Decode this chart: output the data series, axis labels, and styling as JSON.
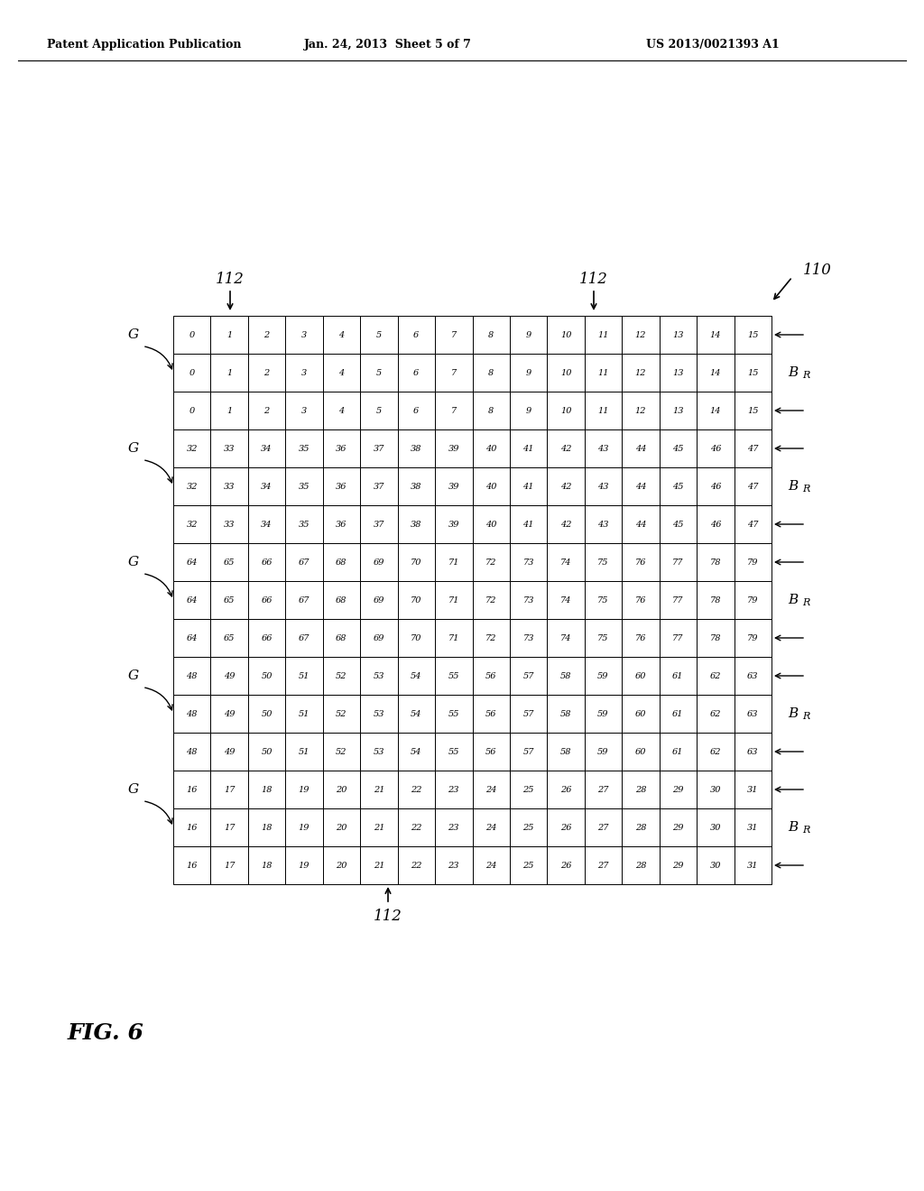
{
  "title_left": "Patent Application Publication",
  "title_mid": "Jan. 24, 2013  Sheet 5 of 7",
  "title_right": "US 2013/0021393 A1",
  "fig_label": "FIG. 6",
  "label_110": "110",
  "label_112": "112",
  "grid_rows": 15,
  "grid_cols": 16,
  "cell_data": [
    [
      0,
      1,
      2,
      3,
      4,
      5,
      6,
      7,
      8,
      9,
      10,
      11,
      12,
      13,
      14,
      15
    ],
    [
      0,
      1,
      2,
      3,
      4,
      5,
      6,
      7,
      8,
      9,
      10,
      11,
      12,
      13,
      14,
      15
    ],
    [
      0,
      1,
      2,
      3,
      4,
      5,
      6,
      7,
      8,
      9,
      10,
      11,
      12,
      13,
      14,
      15
    ],
    [
      32,
      33,
      34,
      35,
      36,
      37,
      38,
      39,
      40,
      41,
      42,
      43,
      44,
      45,
      46,
      47
    ],
    [
      32,
      33,
      34,
      35,
      36,
      37,
      38,
      39,
      40,
      41,
      42,
      43,
      44,
      45,
      46,
      47
    ],
    [
      32,
      33,
      34,
      35,
      36,
      37,
      38,
      39,
      40,
      41,
      42,
      43,
      44,
      45,
      46,
      47
    ],
    [
      64,
      65,
      66,
      67,
      68,
      69,
      70,
      71,
      72,
      73,
      74,
      75,
      76,
      77,
      78,
      79
    ],
    [
      64,
      65,
      66,
      67,
      68,
      69,
      70,
      71,
      72,
      73,
      74,
      75,
      76,
      77,
      78,
      79
    ],
    [
      64,
      65,
      66,
      67,
      68,
      69,
      70,
      71,
      72,
      73,
      74,
      75,
      76,
      77,
      78,
      79
    ],
    [
      48,
      49,
      50,
      51,
      52,
      53,
      54,
      55,
      56,
      57,
      58,
      59,
      60,
      61,
      62,
      63
    ],
    [
      48,
      49,
      50,
      51,
      52,
      53,
      54,
      55,
      56,
      57,
      58,
      59,
      60,
      61,
      62,
      63
    ],
    [
      48,
      49,
      50,
      51,
      52,
      53,
      54,
      55,
      56,
      57,
      58,
      59,
      60,
      61,
      62,
      63
    ],
    [
      16,
      17,
      18,
      19,
      20,
      21,
      22,
      23,
      24,
      25,
      26,
      27,
      28,
      29,
      30,
      31
    ],
    [
      16,
      17,
      18,
      19,
      20,
      21,
      22,
      23,
      24,
      25,
      26,
      27,
      28,
      29,
      30,
      31
    ],
    [
      16,
      17,
      18,
      19,
      20,
      21,
      22,
      23,
      24,
      25,
      26,
      27,
      28,
      29,
      30,
      31
    ]
  ],
  "G_rows": [
    0,
    3,
    6,
    9,
    12
  ],
  "background_color": "#ffffff",
  "grid_color": "#000000",
  "text_color": "#000000",
  "cell_fontsize": 7.0,
  "annotation_fontsize": 11,
  "label_fontsize": 12,
  "header_fontsize": 9,
  "fig6_fontsize": 18
}
